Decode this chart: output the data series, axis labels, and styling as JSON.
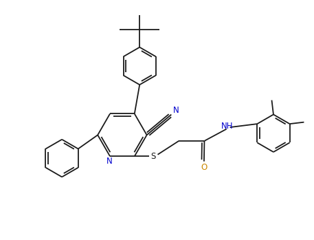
{
  "background_color": "#ffffff",
  "line_color": "#1a1a1a",
  "N_color": "#0000cd",
  "O_color": "#cc8800",
  "figsize": [
    4.57,
    3.49
  ],
  "dpi": 100,
  "xlim": [
    0,
    9.14
  ],
  "ylim": [
    0,
    6.98
  ]
}
